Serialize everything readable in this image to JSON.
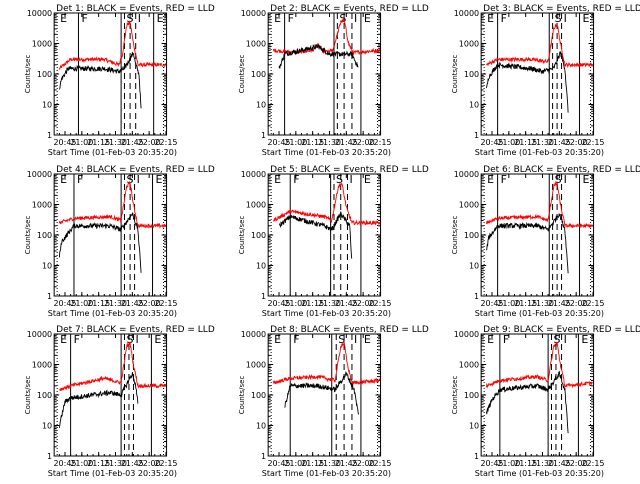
{
  "page": {
    "background": "#ffffff",
    "colors": {
      "events": "#000000",
      "lld": "#ff0000",
      "axes": "#000000"
    }
  },
  "chart_data": [
    {
      "type": "line",
      "title": "Det 1: BLACK = Events, RED = LLD",
      "xlabel": "Start Time (01-Feb-03 20:35:20)",
      "ylabel": "Counts/sec",
      "x_ticks": [
        "20:45",
        "21:00",
        "21:15",
        "21:30",
        "21:45",
        "22:00",
        "22:15"
      ],
      "y_ticks": [
        "1",
        "10",
        "100",
        "1000",
        "10000"
      ],
      "ylim": [
        1,
        10000
      ],
      "yscale": "log",
      "interval_labels": [
        "E",
        "F",
        "S",
        "I",
        "E"
      ],
      "solid_markers": [
        "20:57",
        "21:35",
        "22:04"
      ],
      "dashed_markers": [
        "21:38",
        "21:43",
        "21:48"
      ],
      "series": [
        {
          "points": [
            [
              "20:40",
              150
            ],
            [
              "20:50",
              300
            ],
            [
              "21:20",
              300
            ],
            [
              "21:33",
              200
            ],
            [
              "21:36",
              400
            ],
            [
              "21:40",
              4000
            ],
            [
              "21:43",
              5000
            ],
            [
              "21:46",
              1000
            ],
            [
              "21:50",
              200
            ],
            [
              "22:15",
              200
            ]
          ]
        },
        {
          "points": [
            [
              "20:40",
              35
            ],
            [
              "20:42",
              70
            ],
            [
              "20:48",
              150
            ],
            [
              "21:20",
              150
            ],
            [
              "21:33",
              120
            ],
            [
              "21:38",
              150
            ],
            [
              "21:46",
              500
            ],
            [
              "21:48",
              200
            ],
            [
              "21:51",
              100
            ],
            [
              "21:53",
              5
            ]
          ]
        }
      ]
    },
    {
      "type": "line",
      "title": "Det 2: BLACK = Events, RED = LLD",
      "xlabel": "Start Time (01-Feb-03 20:35:20)",
      "ylabel": "Counts/sec",
      "x_ticks": [
        "20:45",
        "21:00",
        "21:15",
        "21:30",
        "21:45",
        "22:00",
        "22:15"
      ],
      "y_ticks": [
        "1",
        "10",
        "100",
        "1000",
        "10000"
      ],
      "ylim": [
        1,
        10000
      ],
      "yscale": "log",
      "interval_labels": [
        "E",
        "F",
        "S",
        "I",
        "E"
      ],
      "solid_markers": [
        "20:50",
        "21:34",
        "21:58"
      ],
      "dashed_markers": [
        "21:37",
        "21:43",
        "21:50"
      ],
      "series": [
        {
          "points": [
            [
              "20:40",
              600
            ],
            [
              "21:00",
              500
            ],
            [
              "21:15",
              600
            ],
            [
              "21:20",
              900
            ],
            [
              "21:25",
              500
            ],
            [
              "21:33",
              600
            ],
            [
              "21:40",
              5000
            ],
            [
              "21:43",
              6000
            ],
            [
              "21:47",
              1000
            ],
            [
              "21:51",
              500
            ],
            [
              "22:15",
              600
            ]
          ]
        },
        {
          "points": [
            [
              "20:45",
              150
            ],
            [
              "20:50",
              450
            ],
            [
              "21:20",
              800
            ],
            [
              "21:30",
              450
            ],
            [
              "21:50",
              450
            ],
            [
              "21:56",
              150
            ]
          ]
        }
      ]
    },
    {
      "type": "line",
      "title": "Det 3: BLACK = Events, RED = LLD",
      "xlabel": "Start Time (01-Feb-03 20:35:20)",
      "ylabel": "Counts/sec",
      "x_ticks": [
        "20:45",
        "21:00",
        "21:15",
        "21:30",
        "21:45",
        "22:00",
        "22:15"
      ],
      "y_ticks": [
        "1",
        "10",
        "100",
        "1000",
        "10000"
      ],
      "ylim": [
        1,
        10000
      ],
      "yscale": "log",
      "interval_labels": [
        "E",
        "F",
        "S",
        "I",
        "E"
      ],
      "solid_markers": [
        "20:50",
        "21:36",
        "22:03"
      ],
      "dashed_markers": [
        "21:39",
        "21:43",
        "21:47"
      ],
      "series": [
        {
          "points": [
            [
              "20:40",
              200
            ],
            [
              "20:50",
              300
            ],
            [
              "21:20",
              300
            ],
            [
              "21:35",
              250
            ],
            [
              "21:40",
              3000
            ],
            [
              "21:43",
              4500
            ],
            [
              "21:46",
              1000
            ],
            [
              "21:50",
              200
            ],
            [
              "22:15",
              200
            ]
          ]
        },
        {
          "points": [
            [
              "20:40",
              30
            ],
            [
              "20:42",
              80
            ],
            [
              "20:50",
              200
            ],
            [
              "21:20",
              150
            ],
            [
              "21:30",
              120
            ],
            [
              "21:40",
              150
            ],
            [
              "21:46",
              500
            ],
            [
              "21:50",
              150
            ],
            [
              "21:53",
              5
            ]
          ]
        }
      ]
    },
    {
      "type": "line",
      "title": "Det 4: BLACK = Events, RED = LLD",
      "xlabel": "Start Time (01-Feb-03 20:35:20)",
      "ylabel": "Counts/sec",
      "x_ticks": [
        "20:45",
        "21:00",
        "21:15",
        "21:30",
        "21:45",
        "22:00",
        "22:15"
      ],
      "y_ticks": [
        "1",
        "10",
        "100",
        "1000",
        "10000"
      ],
      "ylim": [
        1,
        10000
      ],
      "yscale": "log",
      "interval_labels": [
        "E",
        "F",
        "S",
        "I",
        "E"
      ],
      "solid_markers": [
        "20:53",
        "21:35",
        "22:03"
      ],
      "dashed_markers": [
        "21:38",
        "21:43",
        "21:47"
      ],
      "series": [
        {
          "points": [
            [
              "20:40",
              250
            ],
            [
              "20:53",
              350
            ],
            [
              "21:25",
              400
            ],
            [
              "21:35",
              300
            ],
            [
              "21:40",
              4000
            ],
            [
              "21:43",
              5000
            ],
            [
              "21:46",
              1000
            ],
            [
              "21:50",
              200
            ],
            [
              "22:15",
              200
            ]
          ]
        },
        {
          "points": [
            [
              "20:40",
              20
            ],
            [
              "20:42",
              60
            ],
            [
              "20:53",
              200
            ],
            [
              "21:25",
              200
            ],
            [
              "21:35",
              150
            ],
            [
              "21:45",
              500
            ],
            [
              "21:50",
              150
            ],
            [
              "21:53",
              5
            ]
          ]
        }
      ]
    },
    {
      "type": "line",
      "title": "Det 5: BLACK = Events, RED = LLD",
      "xlabel": "Start Time (01-Feb-03 20:35:20)",
      "ylabel": "Counts/sec",
      "x_ticks": [
        "20:45",
        "21:00",
        "21:15",
        "21:30",
        "21:45",
        "22:00",
        "22:15"
      ],
      "y_ticks": [
        "1",
        "10",
        "100",
        "1000",
        "10000"
      ],
      "ylim": [
        1,
        10000
      ],
      "yscale": "log",
      "interval_labels": [
        "E",
        "F",
        "S",
        "I",
        "E"
      ],
      "solid_markers": [
        "20:55",
        "21:31",
        "21:58"
      ],
      "dashed_markers": [
        "21:34",
        "21:40",
        "21:46"
      ],
      "series": [
        {
          "points": [
            [
              "20:40",
              300
            ],
            [
              "20:55",
              600
            ],
            [
              "21:25",
              400
            ],
            [
              "21:32",
              300
            ],
            [
              "21:38",
              4000
            ],
            [
              "21:41",
              5000
            ],
            [
              "21:45",
              800
            ],
            [
              "21:50",
              250
            ],
            [
              "22:15",
              250
            ]
          ]
        },
        {
          "points": [
            [
              "20:45",
              200
            ],
            [
              "20:55",
              400
            ],
            [
              "21:25",
              200
            ],
            [
              "21:32",
              150
            ],
            [
              "21:40",
              500
            ],
            [
              "21:48",
              200
            ],
            [
              "21:50",
              10
            ]
          ]
        }
      ]
    },
    {
      "type": "line",
      "title": "Det 6: BLACK = Events, RED = LLD",
      "xlabel": "Start Time (01-Feb-03 20:35:20)",
      "ylabel": "Counts/sec",
      "x_ticks": [
        "20:45",
        "21:00",
        "21:15",
        "21:30",
        "21:45",
        "22:00",
        "22:15"
      ],
      "y_ticks": [
        "1",
        "10",
        "100",
        "1000",
        "10000"
      ],
      "ylim": [
        1,
        10000
      ],
      "yscale": "log",
      "interval_labels": [
        "E",
        "F",
        "S",
        "I",
        "E"
      ],
      "solid_markers": [
        "20:50",
        "21:36",
        "22:03"
      ],
      "dashed_markers": [
        "21:39",
        "21:43",
        "21:47"
      ],
      "series": [
        {
          "points": [
            [
              "20:40",
              250
            ],
            [
              "20:50",
              350
            ],
            [
              "21:25",
              400
            ],
            [
              "21:35",
              300
            ],
            [
              "21:40",
              4000
            ],
            [
              "21:43",
              5000
            ],
            [
              "21:46",
              1000
            ],
            [
              "21:50",
              200
            ],
            [
              "22:15",
              200
            ]
          ]
        },
        {
          "points": [
            [
              "20:40",
              30
            ],
            [
              "20:42",
              80
            ],
            [
              "20:50",
              200
            ],
            [
              "21:25",
              200
            ],
            [
              "21:35",
              150
            ],
            [
              "21:45",
              500
            ],
            [
              "21:50",
              150
            ],
            [
              "21:53",
              5
            ]
          ]
        }
      ]
    },
    {
      "type": "line",
      "title": "Det 7: BLACK = Events, RED = LLD",
      "xlabel": "Start Time (01-Feb-03 20:35:20)",
      "ylabel": "Counts/sec",
      "x_ticks": [
        "20:45",
        "21:00",
        "21:15",
        "21:30",
        "21:45",
        "22:00",
        "22:15"
      ],
      "y_ticks": [
        "1",
        "10",
        "100",
        "1000",
        "10000"
      ],
      "ylim": [
        1,
        10000
      ],
      "yscale": "log",
      "interval_labels": [
        "E",
        "F",
        "S",
        "I",
        "E"
      ],
      "solid_markers": [
        "20:50",
        "21:35",
        "22:02"
      ],
      "dashed_markers": [
        "21:38",
        "21:42",
        "21:46"
      ],
      "series": [
        {
          "points": [
            [
              "20:40",
              150
            ],
            [
              "20:50",
              200
            ],
            [
              "21:20",
              350
            ],
            [
              "21:35",
              250
            ],
            [
              "21:40",
              4000
            ],
            [
              "21:43",
              5000
            ],
            [
              "21:46",
              1000
            ],
            [
              "21:50",
              200
            ],
            [
              "22:15",
              200
            ]
          ]
        },
        {
          "points": [
            [
              "20:40",
              10
            ],
            [
              "20:45",
              60
            ],
            [
              "20:50",
              80
            ],
            [
              "21:25",
              120
            ],
            [
              "21:35",
              100
            ],
            [
              "21:45",
              500
            ],
            [
              "21:48",
              200
            ],
            [
              "21:50",
              50
            ]
          ]
        }
      ]
    },
    {
      "type": "line",
      "title": "Det 8: BLACK = Events, RED = LLD",
      "xlabel": "Start Time (01-Feb-03 20:35:20)",
      "ylabel": "Counts/sec",
      "x_ticks": [
        "20:45",
        "21:00",
        "21:15",
        "21:30",
        "21:45",
        "22:00",
        "22:15"
      ],
      "y_ticks": [
        "1",
        "10",
        "100",
        "1000",
        "10000"
      ],
      "ylim": [
        1,
        10000
      ],
      "yscale": "log",
      "interval_labels": [
        "E",
        "F",
        "S",
        "I",
        "E"
      ],
      "solid_markers": [
        "20:55",
        "21:32",
        "21:58"
      ],
      "dashed_markers": [
        "21:36",
        "21:43",
        "21:50"
      ],
      "series": [
        {
          "points": [
            [
              "20:40",
              250
            ],
            [
              "20:55",
              350
            ],
            [
              "21:20",
              400
            ],
            [
              "21:35",
              300
            ],
            [
              "21:40",
              4000
            ],
            [
              "21:43",
              5000
            ],
            [
              "21:46",
              1000
            ],
            [
              "21:50",
              250
            ],
            [
              "22:15",
              300
            ]
          ]
        },
        {
          "points": [
            [
              "20:50",
              40
            ],
            [
              "20:55",
              200
            ],
            [
              "21:20",
              200
            ],
            [
              "21:35",
              150
            ],
            [
              "21:45",
              500
            ],
            [
              "21:52",
              150
            ],
            [
              "21:56",
              20
            ]
          ]
        }
      ]
    },
    {
      "type": "line",
      "title": "Det 9: BLACK = Events, RED = LLD",
      "xlabel": "Start Time (01-Feb-03 20:35:20)",
      "ylabel": "Counts/sec",
      "x_ticks": [
        "20:45",
        "21:00",
        "21:15",
        "21:30",
        "21:45",
        "22:00",
        "22:15"
      ],
      "y_ticks": [
        "1",
        "10",
        "100",
        "1000",
        "10000"
      ],
      "ylim": [
        1,
        10000
      ],
      "yscale": "log",
      "interval_labels": [
        "E",
        "F",
        "S",
        "I",
        "E"
      ],
      "solid_markers": [
        "20:52",
        "21:35",
        "22:02"
      ],
      "dashed_markers": [
        "21:38",
        "21:42",
        "21:47"
      ],
      "series": [
        {
          "points": [
            [
              "20:40",
              200
            ],
            [
              "20:52",
              300
            ],
            [
              "21:25",
              400
            ],
            [
              "21:35",
              300
            ],
            [
              "21:40",
              4000
            ],
            [
              "21:43",
              5000
            ],
            [
              "21:46",
              1000
            ],
            [
              "21:50",
              200
            ],
            [
              "22:15",
              250
            ]
          ]
        },
        {
          "points": [
            [
              "20:40",
              25
            ],
            [
              "20:45",
              70
            ],
            [
              "20:52",
              150
            ],
            [
              "21:25",
              200
            ],
            [
              "21:35",
              150
            ],
            [
              "21:45",
              500
            ],
            [
              "21:50",
              150
            ],
            [
              "21:53",
              5
            ]
          ]
        }
      ]
    }
  ]
}
